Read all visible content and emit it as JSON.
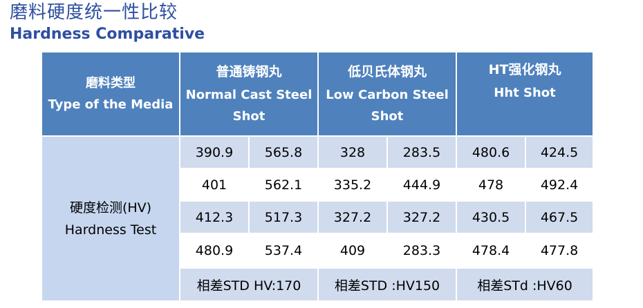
{
  "header": {
    "title_cn": "磨料硬度统一性比较",
    "title_en": "Hardness Comparative"
  },
  "table": {
    "corner": {
      "cn": "磨料类型",
      "en": "Type of the Media"
    },
    "groups": [
      {
        "cn": "普通铸钢丸",
        "en1": "Normal Cast Steel",
        "en2": "Shot"
      },
      {
        "cn": "低贝氏体钢丸",
        "en1": "Low Carbon Steel",
        "en2": "Shot"
      },
      {
        "cn": "HT强化钢丸",
        "en1": "Hht Shot",
        "en2": ""
      }
    ],
    "row_label": {
      "cn": "硬度检测(HV)",
      "en": "Hardness Test"
    },
    "rows": [
      [
        "390.9",
        "565.8",
        "328",
        "283.5",
        "480.6",
        "424.5"
      ],
      [
        "401",
        "562.1",
        "335.2",
        "444.9",
        "478",
        "492.4"
      ],
      [
        "412.3",
        "517.3",
        "327.2",
        "327.2",
        "430.5",
        "467.5"
      ],
      [
        "480.9",
        "537.4",
        "409",
        "283.3",
        "478.4",
        "477.8"
      ]
    ],
    "std": [
      "相差STD HV:170",
      "相差STD :HV150",
      "相差STd :HV60"
    ]
  }
}
